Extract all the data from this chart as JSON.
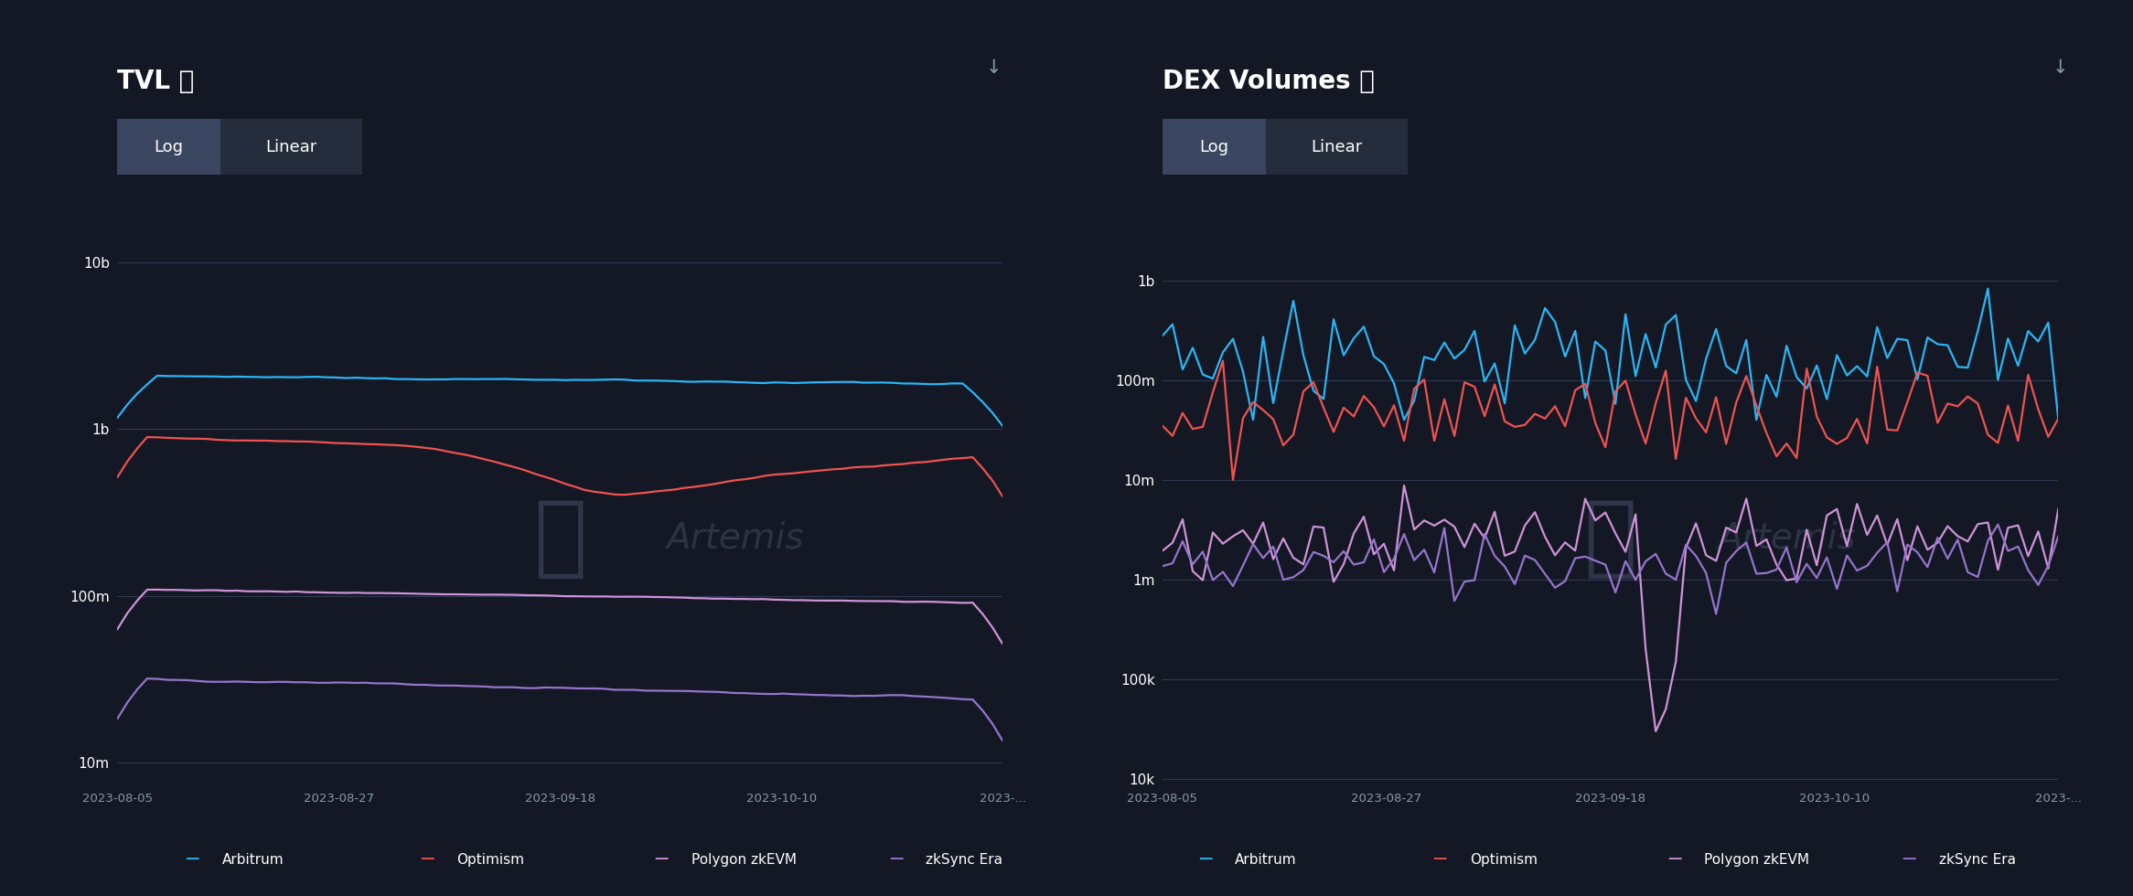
{
  "background_color": "#141824",
  "grid_color": "#2e3a52",
  "text_color": "#ffffff",
  "label_color": "#8899aa",
  "title_tvl": "TVL ⓘ",
  "title_dex": "DEX Volumes ⓘ",
  "colors": {
    "arbitrum": "#29b6f6",
    "optimism": "#ef5350",
    "polygon": "#ce93d8",
    "zksync": "#9575cd"
  },
  "legend": [
    "Arbitrum",
    "Optimism",
    "Polygon zkEVM",
    "zkSync Era"
  ],
  "x_labels": [
    "2023-08-05",
    "2023-08-27",
    "2023-09-18",
    "2023-10-10",
    "2023-..."
  ],
  "tvl_ylim": [
    7000000.0,
    15000000000.0
  ],
  "tvl_yticks": [
    10000000.0,
    100000000.0,
    1000000000.0,
    10000000000.0
  ],
  "tvl_ytick_labels": [
    "10m",
    "100m",
    "1b",
    "10b"
  ],
  "dex_ylim": [
    8000.0,
    3000000000.0
  ],
  "dex_yticks": [
    10000.0,
    100000.0,
    1000000.0,
    10000000.0,
    100000000.0,
    1000000000.0
  ],
  "dex_ytick_labels": [
    "10k",
    "100k",
    "1m",
    "10m",
    "100m",
    "1b"
  ],
  "n_points": 90,
  "btn_bg": "#252d3d",
  "btn_active_bg": "#3a4560"
}
